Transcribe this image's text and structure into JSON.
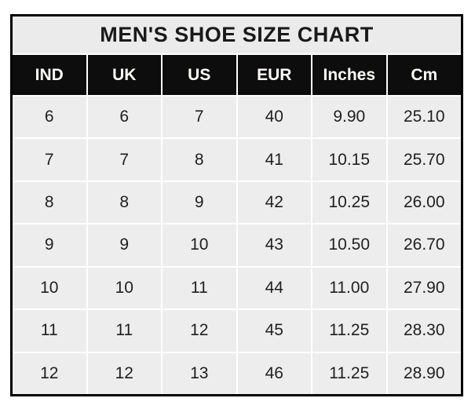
{
  "title": "MEN'S SHOE SIZE CHART",
  "colors": {
    "page_bg": "#ffffff",
    "border": "#000000",
    "title_bg": "#ebebeb",
    "header_bg": "#0d0d0d",
    "header_text": "#fffdf5",
    "cell_bg": "#ededed",
    "cell_text": "#1f1f1f",
    "gap": "#ffffff"
  },
  "chart_data": {
    "type": "table",
    "title": "MEN'S SHOE SIZE CHART",
    "columns": [
      "IND",
      "UK",
      "US",
      "EUR",
      "Inches",
      "Cm"
    ],
    "rows": [
      [
        "6",
        "6",
        "7",
        "40",
        "9.90",
        "25.10"
      ],
      [
        "7",
        "7",
        "8",
        "41",
        "10.15",
        "25.70"
      ],
      [
        "8",
        "8",
        "9",
        "42",
        "10.25",
        "26.00"
      ],
      [
        "9",
        "9",
        "10",
        "43",
        "10.50",
        "26.70"
      ],
      [
        "10",
        "10",
        "11",
        "44",
        "11.00",
        "27.90"
      ],
      [
        "11",
        "11",
        "12",
        "45",
        "11.25",
        "28.30"
      ],
      [
        "12",
        "12",
        "13",
        "46",
        "11.25",
        "28.90"
      ]
    ]
  }
}
